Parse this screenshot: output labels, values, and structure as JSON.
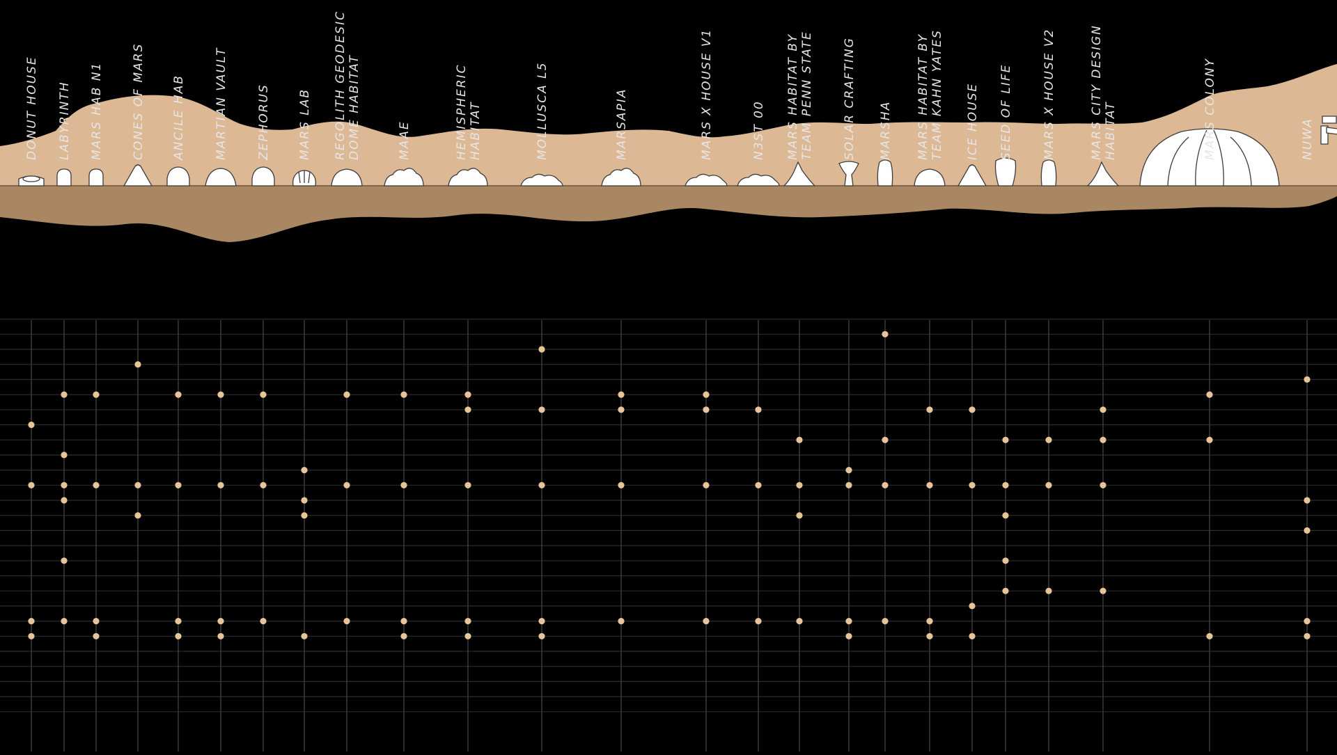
{
  "colors": {
    "background": "#000000",
    "terrain_surface": "#dcb894",
    "terrain_ground": "#a98762",
    "habitat_fill": "#ffffff",
    "grid_line": "#3a3a3a",
    "dot": "#e8c49b",
    "label": "#e6e6e6"
  },
  "habitats": [
    {
      "label": [
        "DONUT HOUSE"
      ],
      "shape": "donut",
      "dots": [
        5,
        9,
        18,
        19
      ]
    },
    {
      "label": [
        "LABYRINTH"
      ],
      "shape": "capsule",
      "dots": [
        3,
        7,
        9,
        10,
        14,
        18
      ]
    },
    {
      "label": [
        "MARS HAB N1"
      ],
      "shape": "capsule",
      "dots": [
        3,
        9,
        18,
        19
      ]
    },
    {
      "label": [
        "CONES OF MARS"
      ],
      "shape": "cone",
      "dots": [
        1,
        9,
        11
      ]
    },
    {
      "label": [
        "ANCILE HAB"
      ],
      "shape": "arch",
      "dots": [
        3,
        9,
        18,
        19
      ]
    },
    {
      "label": [
        "MARTIAN VAULT"
      ],
      "shape": "vault",
      "dots": [
        3,
        9,
        18,
        19
      ]
    },
    {
      "label": [
        "ZEPHORUS"
      ],
      "shape": "arch",
      "dots": [
        3,
        9,
        18
      ]
    },
    {
      "label": [
        "MARS LAB"
      ],
      "shape": "shell",
      "dots": [
        8,
        10,
        11,
        19
      ]
    },
    {
      "label": [
        "REGOLITH GEODESIC",
        "DOME HABITAT"
      ],
      "shape": "dome",
      "dots": [
        3,
        9,
        18
      ]
    },
    {
      "label": [
        "MAAE"
      ],
      "shape": "cluster",
      "dots": [
        3,
        9,
        18,
        19
      ]
    },
    {
      "label": [
        "HEMISPHERIC",
        "HABITAT"
      ],
      "shape": "cluster",
      "dots": [
        3,
        4,
        9,
        18,
        19
      ]
    },
    {
      "label": [
        "MOLLUSCA L5"
      ],
      "shape": "blob",
      "dots": [
        0,
        4,
        9,
        18,
        19
      ]
    },
    {
      "label": [
        "MARSAPIA"
      ],
      "shape": "cluster",
      "dots": [
        3,
        4,
        9,
        18
      ]
    },
    {
      "label": [
        "MARS X HOUSE V1"
      ],
      "shape": "blob",
      "dots": [
        3,
        4,
        9,
        18
      ]
    },
    {
      "label": [
        "N3ST 00"
      ],
      "shape": "blob",
      "dots": [
        4,
        9,
        18
      ]
    },
    {
      "label": [
        "MARS HABITAT BY",
        "TEAM PENN STATE"
      ],
      "shape": "spike",
      "dots": [
        6,
        9,
        11,
        18
      ]
    },
    {
      "label": [
        "SOLAR CRAFTING"
      ],
      "shape": "cup",
      "dots": [
        8,
        9,
        18,
        19
      ]
    },
    {
      "label": [
        "MARSHA"
      ],
      "shape": "tall",
      "dots": [
        -1,
        6,
        9,
        18
      ]
    },
    {
      "label": [
        "MARS HABITAT BY",
        "TEAM KAHN YATES"
      ],
      "shape": "dome",
      "dots": [
        4,
        9,
        18,
        19
      ]
    },
    {
      "label": [
        "ICE HOUSE"
      ],
      "shape": "cone",
      "dots": [
        4,
        9,
        17,
        19
      ]
    },
    {
      "label": [
        "SEED OF LIFE"
      ],
      "shape": "seed",
      "dots": [
        6,
        9,
        11,
        14,
        16
      ]
    },
    {
      "label": [
        "MARS X HOUSE V2"
      ],
      "shape": "tall",
      "dots": [
        6,
        9,
        16
      ]
    },
    {
      "label": [
        "MARS CITY DESIGN",
        "HABITAT"
      ],
      "shape": "spike",
      "dots": [
        4,
        6,
        9,
        16
      ]
    },
    {
      "label": [
        "MARS COLONY"
      ],
      "shape": "colony",
      "dots": [
        3,
        6,
        19
      ]
    },
    {
      "label": [
        "NUWA"
      ],
      "shape": "cliff",
      "dots": [
        2,
        10,
        12,
        18,
        19
      ]
    }
  ]
}
